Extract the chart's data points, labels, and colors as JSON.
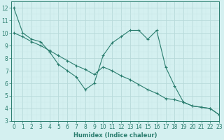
{
  "line1_x": [
    0,
    1,
    2,
    3,
    4,
    5,
    6,
    7,
    8,
    9,
    10,
    11,
    12,
    13,
    14,
    15,
    16,
    17,
    18,
    19,
    20,
    21,
    22,
    23
  ],
  "line1_y": [
    12.0,
    10.0,
    9.5,
    9.3,
    8.5,
    7.5,
    7.0,
    6.5,
    5.5,
    6.0,
    8.2,
    9.2,
    9.7,
    10.2,
    10.2,
    9.5,
    10.2,
    7.3,
    5.8,
    4.5,
    4.2,
    4.1,
    4.0,
    3.5
  ],
  "line2_x": [
    0,
    1,
    2,
    3,
    4,
    5,
    6,
    7,
    8,
    9,
    10,
    11,
    12,
    13,
    14,
    15,
    16,
    17,
    18,
    19,
    20,
    21,
    22,
    23
  ],
  "line2_y": [
    10.0,
    9.7,
    9.3,
    9.0,
    8.6,
    8.2,
    7.8,
    7.4,
    7.1,
    6.7,
    7.3,
    7.0,
    6.6,
    6.3,
    5.9,
    5.5,
    5.2,
    4.8,
    4.7,
    4.5,
    4.2,
    4.1,
    4.0,
    3.5
  ],
  "line_color": "#2a7d6e",
  "bg_color": "#d4f0f0",
  "grid_major_color": "#b8dada",
  "grid_minor_color": "#c8e8e8",
  "xlabel": "Humidex (Indice chaleur)",
  "ylim": [
    3,
    12.5
  ],
  "xlim": [
    -0.3,
    23
  ],
  "yticks": [
    3,
    4,
    5,
    6,
    7,
    8,
    9,
    10,
    11,
    12
  ],
  "xticks": [
    0,
    1,
    2,
    3,
    4,
    5,
    6,
    7,
    8,
    9,
    10,
    11,
    12,
    13,
    14,
    15,
    16,
    17,
    18,
    19,
    20,
    21,
    22,
    23
  ],
  "marker": "+",
  "markersize": 3,
  "linewidth": 0.8,
  "xlabel_fontsize": 6,
  "tick_fontsize": 5.5
}
